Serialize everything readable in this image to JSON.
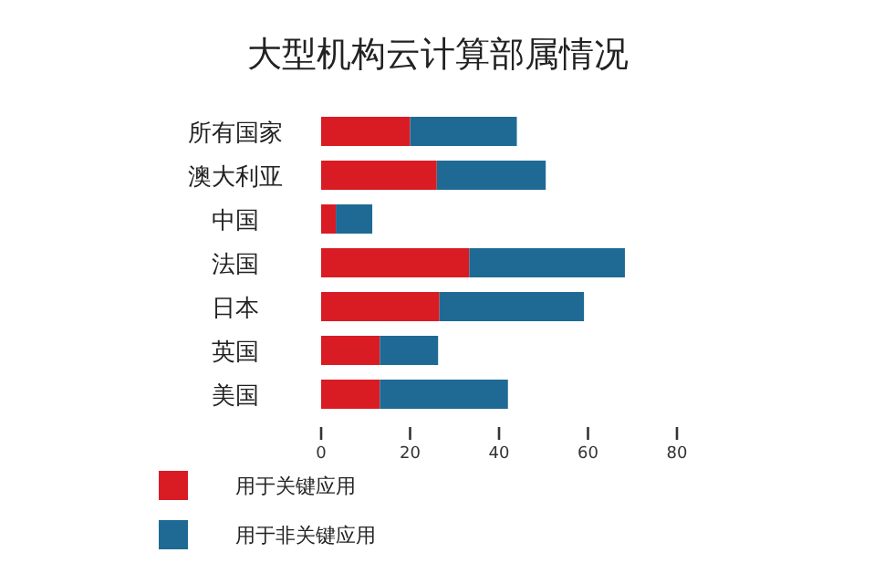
{
  "chart_data": {
    "type": "bar",
    "title": "大型机构云计算部属情况",
    "orientation": "horizontal",
    "stacked": true,
    "categories": [
      "所有国家",
      "澳大利亚",
      "中国",
      "法国",
      "日本",
      "英国",
      "美国"
    ],
    "series": [
      {
        "name": "用于关键应用",
        "color": "#d91c24",
        "values": [
          20,
          26,
          3.3,
          33.3,
          26.6,
          13.2,
          13.2
        ]
      },
      {
        "name": "用于非关键应用",
        "color": "#1f6a94",
        "values": [
          24,
          24.5,
          8.2,
          35,
          32.5,
          13.1,
          28.8
        ]
      }
    ],
    "xlim": [
      0,
      80
    ],
    "xticks": [
      0,
      20,
      40,
      60,
      80
    ],
    "legend": "bottom left"
  }
}
